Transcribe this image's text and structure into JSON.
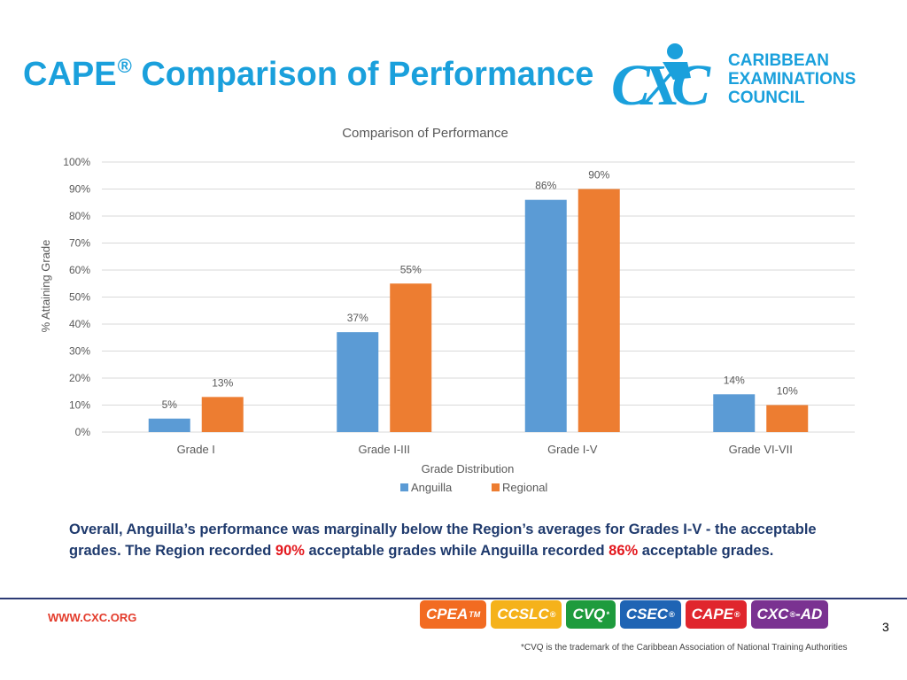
{
  "slide": {
    "title": "CAPE",
    "title_mark": "®",
    "title_rest": " Comparison of Performance",
    "logo": {
      "letters": "CXC",
      "name_lines": [
        "CARIBBEAN",
        "EXAMINATIONS",
        "COUNCIL"
      ]
    },
    "summary": {
      "part1": "Overall, Anguilla’s performance was marginally below the Region’s averages for Grades I-V - the acceptable grades. The Region recorded ",
      "highlight1": "90%",
      "part2": " acceptable grades while Anguilla recorded ",
      "highlight2": "86%",
      "part3": " acceptable grades."
    },
    "footer": {
      "url": "WWW.CXC.ORG",
      "page_number": "3",
      "footnote": "*CVQ is the trademark of the Caribbean Association of National Training Authorities",
      "badges": [
        {
          "label": "CPEA",
          "mark": "TM",
          "color": "#f26b21"
        },
        {
          "label": "CCSLC",
          "mark": "®",
          "color": "#f5b21b"
        },
        {
          "label": "CVQ",
          "mark": "*",
          "color": "#1e9b3d"
        },
        {
          "label": "CSEC",
          "mark": "®",
          "color": "#1f64b4"
        },
        {
          "label": "CAPE",
          "mark": "®",
          "color": "#e0262d"
        },
        {
          "label": "CXC",
          "mark": "®",
          "suffix": "-AD",
          "color": "#7a3291"
        }
      ]
    },
    "colors": {
      "title": "#1aa0dc",
      "summary": "#1f3a6d",
      "highlight": "#e3171d",
      "rule": "#2c3b75"
    }
  },
  "chart_data": {
    "type": "bar",
    "title": "Comparison of Performance",
    "xlabel": "Grade Distribution",
    "ylabel": "% Attaining Grade",
    "categories": [
      "Grade I",
      "Grade I-III",
      "Grade I-V",
      "Grade VI-VII"
    ],
    "series": [
      {
        "name": "Anguilla",
        "values": [
          5,
          37,
          86,
          14
        ],
        "labels": [
          "5%",
          "37%",
          "86%",
          "14%"
        ],
        "color": "#5b9bd5"
      },
      {
        "name": "Regional",
        "values": [
          13,
          55,
          90,
          10
        ],
        "labels": [
          "13%",
          "55%",
          "90%",
          "10%"
        ],
        "color": "#ed7d31"
      }
    ],
    "ylim": [
      0,
      100
    ],
    "yticks": [
      "0%",
      "10%",
      "20%",
      "30%",
      "40%",
      "50%",
      "60%",
      "70%",
      "80%",
      "90%",
      "100%"
    ],
    "grid": true,
    "legend": "bottom-center"
  }
}
